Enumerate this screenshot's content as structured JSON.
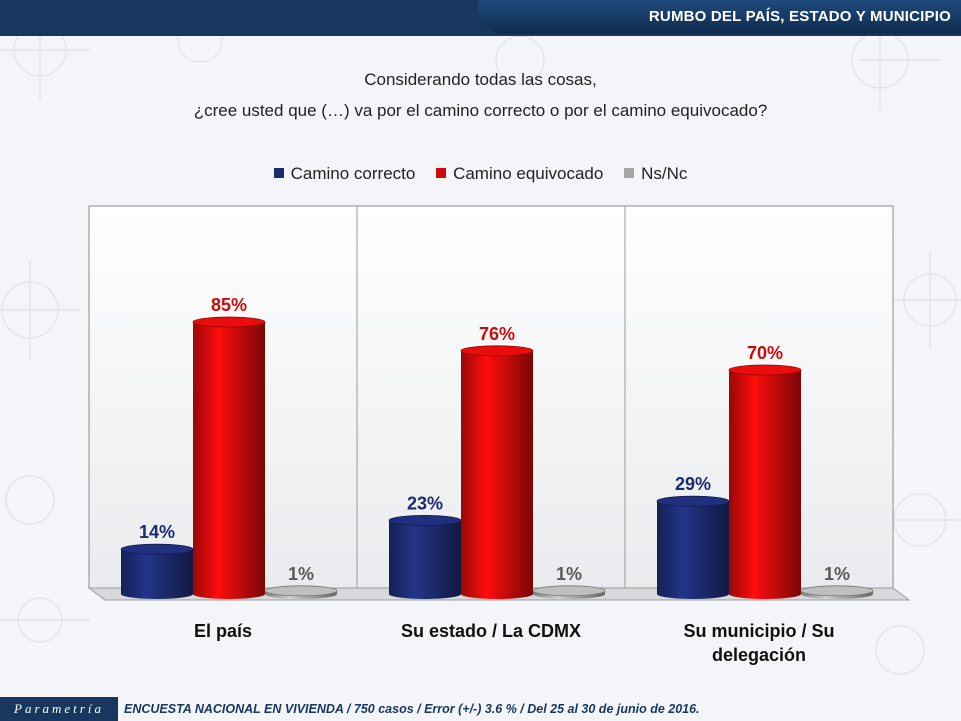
{
  "header": {
    "title": "RUMBO DEL PAÍS, ESTADO Y MUNICIPIO"
  },
  "question": {
    "line1": "Considerando todas las cosas,",
    "line2": "¿cree usted que (…) va por el camino correcto o por el camino equivocado?"
  },
  "footer": {
    "logo": "Parametría",
    "note": "ENCUESTA NACIONAL EN VIVIENDA / 750 casos / Error (+/-) 3.6 % / Del 25 al 30 de junio de 2016."
  },
  "colors": {
    "navy": "#1c2a6e",
    "red": "#cc0a0a",
    "gray": "#a6a6a6",
    "header": "#17375e"
  },
  "chart_data": {
    "type": "bar",
    "categories": [
      "El país",
      "Su estado / La CDMX",
      "Su municipio / Su delegación"
    ],
    "series": [
      {
        "name": "Camino correcto",
        "values": [
          14,
          23,
          29
        ],
        "color": "#1c2a6e"
      },
      {
        "name": "Camino equivocado",
        "values": [
          85,
          76,
          70
        ],
        "color": "#cc0a0a"
      },
      {
        "name": "Ns/Nc",
        "values": [
          1,
          1,
          1
        ],
        "color": "#a6a6a6"
      }
    ],
    "value_suffix": "%",
    "ylim": [
      0,
      100
    ],
    "legend_position": "top",
    "grid": false
  }
}
